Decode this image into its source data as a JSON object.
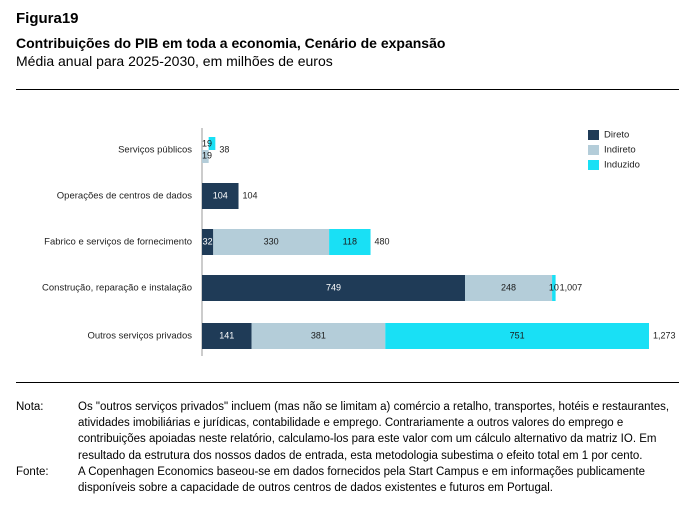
{
  "figure": {
    "label": "Figura19",
    "title": "Contribuições do PIB em toda a economia, Cenário de expansão",
    "subtitle": "Média anual para 2025-2030, em milhões de euros"
  },
  "colors": {
    "direto": "#1f3b57",
    "indireto": "#b4cdd9",
    "induzido": "#19e0f5"
  },
  "chart_data": {
    "type": "bar",
    "orientation": "horizontal",
    "stacked": true,
    "categories": [
      "Serviços públicos",
      "Operações de centros de dados",
      "Fabrico e serviços de fornecimento",
      "Construção, reparação e instalação",
      "Outros serviços privados"
    ],
    "series": [
      {
        "name": "Direto",
        "values": [
          0,
          104,
          32,
          749,
          141
        ]
      },
      {
        "name": "Indireto",
        "values": [
          19,
          0,
          330,
          248,
          381
        ]
      },
      {
        "name": "Induzido",
        "values": [
          19,
          0,
          118,
          10,
          751
        ]
      }
    ],
    "segment_labels": [
      [
        "",
        "19",
        "19"
      ],
      [
        "104",
        "",
        ""
      ],
      [
        "32",
        "330",
        "118"
      ],
      [
        "749",
        "248",
        "10"
      ],
      [
        "141",
        "381",
        "751"
      ]
    ],
    "totals": [
      "38",
      "104",
      "480",
      "1,007",
      "1,273"
    ],
    "legend_position": "top-right",
    "grid": false,
    "xlim": [
      0,
      1273
    ]
  },
  "notes": {
    "nota_label": "Nota:",
    "nota_text": "Os \"outros serviços privados\" incluem (mas não se limitam a) comércio a retalho, transportes, hotéis e restaurantes, atividades imobiliárias e jurídicas, contabilidade e emprego. Contrariamente a outros valores do emprego e contribuições apoiadas neste relatório, calculamo-los para este valor com um cálculo alternativo da matriz IO. Em resultado da estrutura dos nossos dados de entrada, esta metodologia subestima o efeito total em 1 por cento.",
    "fonte_label": "Fonte:",
    "fonte_text": "A Copenhagen Economics baseou-se em dados fornecidos pela Start Campus e em informações publicamente disponíveis sobre a capacidade de outros centros de dados existentes e futuros em Portugal."
  }
}
